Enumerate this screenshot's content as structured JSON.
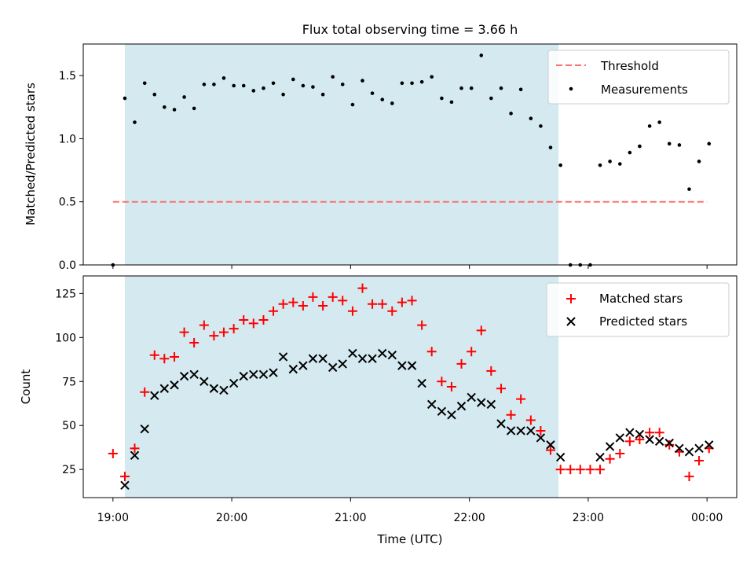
{
  "chart_data": [
    {
      "type": "scatter",
      "title": "Flux total observing time = 3.66 h",
      "ylabel": "Matched/Predicted stars",
      "ylim": [
        0,
        1.75
      ],
      "y_ticks": [
        "0.0",
        "0.5",
        "1.0",
        "1.5"
      ],
      "shaded_span_hours": [
        19.1,
        22.75
      ],
      "shade_color": "#d4eaf0",
      "legend": {
        "position": "upper right",
        "entries": [
          "Threshold",
          "Measurements"
        ]
      },
      "threshold": {
        "name": "Threshold",
        "value": 0.5,
        "x_range": [
          19.0,
          24.0
        ],
        "color": "#ff7070"
      },
      "series": [
        {
          "name": "Measurements",
          "color": "#000000",
          "x": [
            19.0,
            19.1,
            19.183,
            19.267,
            19.35,
            19.433,
            19.517,
            19.6,
            19.683,
            19.767,
            19.85,
            19.933,
            20.017,
            20.1,
            20.183,
            20.267,
            20.35,
            20.433,
            20.517,
            20.6,
            20.683,
            20.767,
            20.85,
            20.933,
            21.017,
            21.1,
            21.183,
            21.267,
            21.35,
            21.433,
            21.517,
            21.6,
            21.683,
            21.767,
            21.85,
            21.933,
            22.017,
            22.1,
            22.183,
            22.267,
            22.35,
            22.433,
            22.517,
            22.6,
            22.683,
            22.767,
            22.85,
            22.933,
            23.017,
            23.1,
            23.183,
            23.267,
            23.35,
            23.433,
            23.517,
            23.6,
            23.683,
            23.767,
            23.85,
            23.933,
            24.017
          ],
          "y": [
            0.0,
            1.32,
            1.13,
            1.44,
            1.35,
            1.25,
            1.23,
            1.33,
            1.24,
            1.43,
            1.43,
            1.48,
            1.42,
            1.42,
            1.38,
            1.4,
            1.44,
            1.35,
            1.47,
            1.42,
            1.41,
            1.35,
            1.49,
            1.43,
            1.27,
            1.46,
            1.36,
            1.31,
            1.28,
            1.44,
            1.44,
            1.45,
            1.49,
            1.32,
            1.29,
            1.4,
            1.4,
            1.66,
            1.32,
            1.4,
            1.2,
            1.39,
            1.16,
            1.1,
            0.93,
            0.79,
            0.0,
            0.0,
            0.0,
            0.79,
            0.82,
            0.8,
            0.89,
            0.94,
            1.1,
            1.13,
            0.96,
            0.95,
            0.6,
            0.82,
            0.96
          ]
        }
      ]
    },
    {
      "type": "scatter",
      "xlabel": "Time (UTC)",
      "ylabel": "Count",
      "xlim_hours": [
        18.75,
        24.25
      ],
      "ylim": [
        9,
        135
      ],
      "y_ticks": [
        "25",
        "50",
        "75",
        "100",
        "125"
      ],
      "x_ticks": [
        "19:00",
        "20:00",
        "21:00",
        "22:00",
        "23:00",
        "00:00"
      ],
      "shaded_span_hours": [
        19.1,
        22.75
      ],
      "shade_color": "#d4eaf0",
      "legend": {
        "position": "upper right",
        "entries": [
          "Matched stars",
          "Predicted stars"
        ]
      },
      "series": [
        {
          "name": "Matched stars",
          "marker": "plus",
          "color": "#ff0000",
          "x": [
            19.0,
            19.1,
            19.183,
            19.267,
            19.35,
            19.433,
            19.517,
            19.6,
            19.683,
            19.767,
            19.85,
            19.933,
            20.017,
            20.1,
            20.183,
            20.267,
            20.35,
            20.433,
            20.517,
            20.6,
            20.683,
            20.767,
            20.85,
            20.933,
            21.017,
            21.1,
            21.183,
            21.267,
            21.35,
            21.433,
            21.517,
            21.6,
            21.683,
            21.767,
            21.85,
            21.933,
            22.017,
            22.1,
            22.183,
            22.267,
            22.35,
            22.433,
            22.517,
            22.6,
            22.683,
            22.767,
            22.85,
            22.933,
            23.017,
            23.1,
            23.183,
            23.267,
            23.35,
            23.433,
            23.517,
            23.6,
            23.683,
            23.767,
            23.85,
            23.933,
            24.017
          ],
          "y": [
            34,
            21,
            37,
            69,
            90,
            88,
            89,
            103,
            97,
            107,
            101,
            103,
            105,
            110,
            108,
            110,
            115,
            119,
            120,
            118,
            123,
            118,
            123,
            121,
            115,
            128,
            119,
            119,
            115,
            120,
            121,
            107,
            92,
            75,
            72,
            85,
            92,
            104,
            81,
            71,
            56,
            65,
            53,
            47,
            36,
            25,
            25,
            25,
            25,
            25,
            31,
            34,
            41,
            42,
            46,
            46,
            39,
            35,
            21,
            30,
            37
          ]
        },
        {
          "name": "Predicted stars",
          "marker": "x",
          "color": "#000000",
          "x": [
            19.1,
            19.183,
            19.267,
            19.35,
            19.433,
            19.517,
            19.6,
            19.683,
            19.767,
            19.85,
            19.933,
            20.017,
            20.1,
            20.183,
            20.267,
            20.35,
            20.433,
            20.517,
            20.6,
            20.683,
            20.767,
            20.85,
            20.933,
            21.017,
            21.1,
            21.183,
            21.267,
            21.35,
            21.433,
            21.517,
            21.6,
            21.683,
            21.767,
            21.85,
            21.933,
            22.017,
            22.1,
            22.183,
            22.267,
            22.35,
            22.433,
            22.517,
            22.6,
            22.683,
            22.767,
            23.1,
            23.183,
            23.267,
            23.35,
            23.433,
            23.517,
            23.6,
            23.683,
            23.767,
            23.85,
            23.933,
            24.017
          ],
          "y": [
            16,
            33,
            48,
            67,
            71,
            73,
            78,
            79,
            75,
            71,
            70,
            74,
            78,
            79,
            79,
            80,
            89,
            82,
            84,
            88,
            88,
            83,
            85,
            91,
            88,
            88,
            91,
            90,
            84,
            84,
            74,
            62,
            58,
            56,
            61,
            66,
            63,
            62,
            51,
            47,
            47,
            47,
            43,
            39,
            32,
            32,
            38,
            43,
            46,
            45,
            42,
            41,
            40,
            37,
            35,
            37,
            39
          ]
        }
      ]
    }
  ]
}
